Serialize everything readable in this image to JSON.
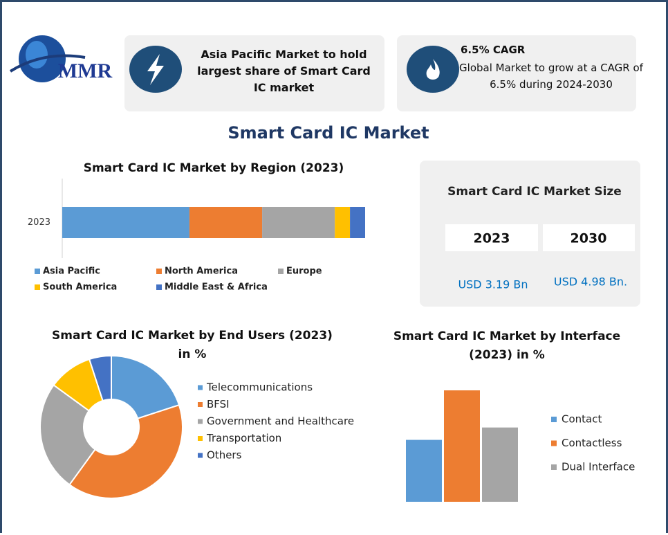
{
  "header": {
    "logo": "MMR",
    "card1": "Asia Pacific Market to hold largest share of Smart Card IC market",
    "card2_title": "6.5% CAGR",
    "card2_text": "Global Market to grow at a CAGR of 6.5% during 2024-2030"
  },
  "title": "Smart Card IC Market",
  "market_size": {
    "title": "Smart Card IC Market Size",
    "columns": [
      "2023",
      "2030"
    ],
    "values": [
      "USD 3.19 Bn",
      "USD 4.98 Bn."
    ]
  },
  "chart_data": [
    {
      "type": "stacked_bar",
      "title": "Smart Card IC Market by Region (2023)",
      "categories": [
        "2023"
      ],
      "series": [
        {
          "name": "Asia Pacific",
          "color": "#5b9bd5",
          "values": [
            42
          ]
        },
        {
          "name": "North America",
          "color": "#ed7d31",
          "values": [
            24
          ]
        },
        {
          "name": "Europe",
          "color": "#a5a5a5",
          "values": [
            24
          ]
        },
        {
          "name": "South America",
          "color": "#ffc000",
          "values": [
            5
          ]
        },
        {
          "name": "Middle East & Africa",
          "color": "#4472c4",
          "values": [
            5
          ]
        }
      ]
    },
    {
      "type": "donut",
      "title": "Smart Card IC Market by End Users (2023) in %",
      "categories": [
        "Telecommunications",
        "BFSI",
        "Government and Healthcare",
        "Transportation",
        "Others"
      ],
      "values": [
        20,
        40,
        25,
        10,
        5
      ],
      "colors": [
        "#5b9bd5",
        "#ed7d31",
        "#a5a5a5",
        "#ffc000",
        "#4472c4"
      ]
    },
    {
      "type": "bar",
      "title": "Smart Card IC Market by Interface (2023) in %",
      "categories": [
        "Contact",
        "Contactless",
        "Dual Interface"
      ],
      "values": [
        25,
        45,
        30
      ],
      "colors": [
        "#5b9bd5",
        "#ed7d31",
        "#a5a5a5"
      ]
    }
  ]
}
